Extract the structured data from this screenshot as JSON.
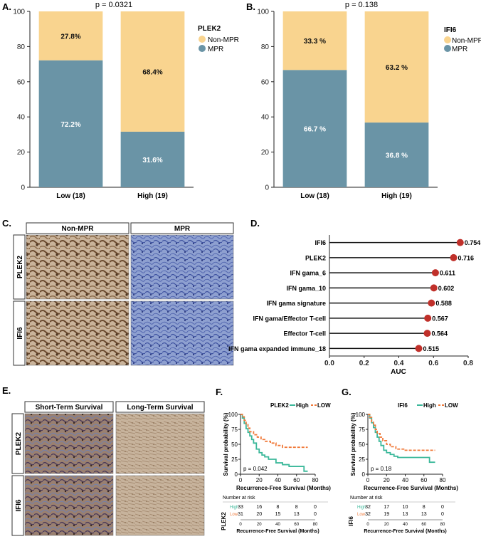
{
  "panels": {
    "A": {
      "letter": "A.",
      "pvalue": "p = 0.0321",
      "legend_title": "PLEK2",
      "legend": [
        "Non-MPR",
        "MPR"
      ]
    },
    "B": {
      "letter": "B.",
      "pvalue": "p = 0.138",
      "legend_title": "IFI6",
      "legend": [
        "Non-MPR",
        "MPR"
      ]
    },
    "C": {
      "letter": "C.",
      "col_headers": [
        "Non-MPR",
        "MPR"
      ],
      "row_labels": [
        "PLEK2",
        "IFI6"
      ]
    },
    "D": {
      "letter": "D.",
      "xlabel": "AUC"
    },
    "E": {
      "letter": "E.",
      "col_headers": [
        "Short-Term Survival",
        "Long-Term Survival"
      ],
      "row_labels": [
        "PLEK2",
        "IFI6"
      ]
    },
    "F": {
      "letter": "F.",
      "gene": "PLEK2",
      "legend_high": "High",
      "legend_low": "LOW",
      "ylabel": "Survival probability (%)",
      "xlabel": "Recurrence-Free Survival (Months)",
      "pvalue": "p = 0.042",
      "risk_title": "Number at risk",
      "risk_row_labels": [
        "High",
        "Low"
      ],
      "risk_high": [
        "33",
        "16",
        "8",
        "8",
        "0"
      ],
      "risk_low": [
        "31",
        "20",
        "15",
        "13",
        "0"
      ],
      "risk_side_label": "PLEK2"
    },
    "G": {
      "letter": "G.",
      "gene": "IFI6",
      "legend_high": "High",
      "legend_low": "LOW",
      "ylabel": "Survival probability (%)",
      "xlabel": "Recurrence-Free Survival (Months)",
      "pvalue": "p = 0.18",
      "risk_title": "Number at risk",
      "risk_row_labels": [
        "High",
        "Low"
      ],
      "risk_high": [
        "32",
        "17",
        "10",
        "8",
        "0"
      ],
      "risk_low": [
        "32",
        "19",
        "13",
        "13",
        "0"
      ],
      "risk_side_label": "IFI6"
    }
  },
  "colors": {
    "mpr": "#6a94a6",
    "non_mpr": "#f9d48f",
    "lollipop": "#c0302a",
    "km_high": "#3bb89a",
    "km_low": "#f07a3a"
  },
  "chart_data": [
    {
      "type": "bar",
      "panel": "A",
      "stacked": true,
      "categories": [
        "Low (18)",
        "High (19)"
      ],
      "series": [
        {
          "name": "MPR",
          "values": [
            72.2,
            31.6
          ],
          "labels": [
            "72.2%",
            "31.6%"
          ]
        },
        {
          "name": "Non-MPR",
          "values": [
            27.8,
            68.4
          ],
          "labels": [
            "27.8%",
            "68.4%"
          ]
        }
      ],
      "ylim": [
        0,
        100
      ],
      "yticks": [
        "0",
        "20",
        "40",
        "60",
        "80",
        "100"
      ]
    },
    {
      "type": "bar",
      "panel": "B",
      "stacked": true,
      "categories": [
        "Low (18)",
        "High (19)"
      ],
      "series": [
        {
          "name": "MPR",
          "values": [
            66.7,
            36.8
          ],
          "labels": [
            "66.7 %",
            "36.8 %"
          ]
        },
        {
          "name": "Non-MPR",
          "values": [
            33.3,
            63.2
          ],
          "labels": [
            "33.3 %",
            "63.2 %"
          ]
        }
      ],
      "ylim": [
        0,
        100
      ],
      "yticks": [
        "0",
        "20",
        "40",
        "60",
        "80",
        "100"
      ]
    },
    {
      "type": "scatter",
      "panel": "D",
      "categories": [
        "IFI6",
        "PLEK2",
        "IFN gama_6",
        "IFN gama_10",
        "IFN gama signature",
        "IFN gama/Effector T-cell",
        "Effector T-cell",
        "IFN gama expanded immune_18"
      ],
      "values": [
        0.754,
        0.716,
        0.611,
        0.602,
        0.588,
        0.567,
        0.564,
        0.515
      ],
      "labels": [
        "0.754",
        "0.716",
        "0.611",
        "0.602",
        "0.588",
        "0.567",
        "0.564",
        "0.515"
      ],
      "xlim": [
        0,
        0.8
      ],
      "xticks": [
        "0.0",
        "0.2",
        "0.4",
        "0.6",
        "0.8"
      ],
      "xlabel": "AUC"
    },
    {
      "type": "line",
      "panel": "F",
      "xlim": [
        0,
        80
      ],
      "ylim": [
        0,
        100
      ],
      "xticks": [
        "0",
        "20",
        "40",
        "60",
        "80"
      ],
      "yticks": [
        "0",
        "25",
        "50",
        "75",
        "100"
      ],
      "series": [
        {
          "name": "High",
          "x": [
            0,
            2,
            4,
            6,
            8,
            10,
            12,
            14,
            17,
            20,
            23,
            26,
            30,
            38,
            45,
            52,
            60,
            68,
            72
          ],
          "y": [
            100,
            94,
            85,
            76,
            70,
            64,
            58,
            52,
            42,
            36,
            32,
            29,
            25,
            19,
            16,
            13,
            13,
            5,
            5
          ]
        },
        {
          "name": "LOW",
          "x": [
            0,
            2,
            4,
            6,
            8,
            10,
            14,
            18,
            22,
            26,
            32,
            38,
            45,
            55,
            65,
            72
          ],
          "y": [
            100,
            96,
            90,
            84,
            77,
            71,
            66,
            62,
            58,
            55,
            52,
            48,
            45,
            45,
            45,
            45
          ]
        }
      ]
    },
    {
      "type": "line",
      "panel": "G",
      "xlim": [
        0,
        80
      ],
      "ylim": [
        0,
        100
      ],
      "xticks": [
        "0",
        "20",
        "40",
        "60",
        "80"
      ],
      "yticks": [
        "0",
        "25",
        "50",
        "75",
        "100"
      ],
      "series": [
        {
          "name": "High",
          "x": [
            0,
            2,
            4,
            6,
            8,
            10,
            12,
            14,
            17,
            20,
            24,
            28,
            32,
            40,
            50,
            60,
            66,
            72
          ],
          "y": [
            100,
            94,
            86,
            78,
            70,
            62,
            55,
            48,
            40,
            36,
            33,
            30,
            28,
            28,
            28,
            28,
            20,
            20
          ]
        },
        {
          "name": "LOW",
          "x": [
            0,
            2,
            4,
            6,
            8,
            10,
            13,
            16,
            20,
            24,
            30,
            40,
            50,
            60,
            72
          ],
          "y": [
            100,
            95,
            88,
            82,
            75,
            68,
            62,
            56,
            50,
            46,
            42,
            40,
            40,
            40,
            40
          ]
        }
      ]
    }
  ]
}
